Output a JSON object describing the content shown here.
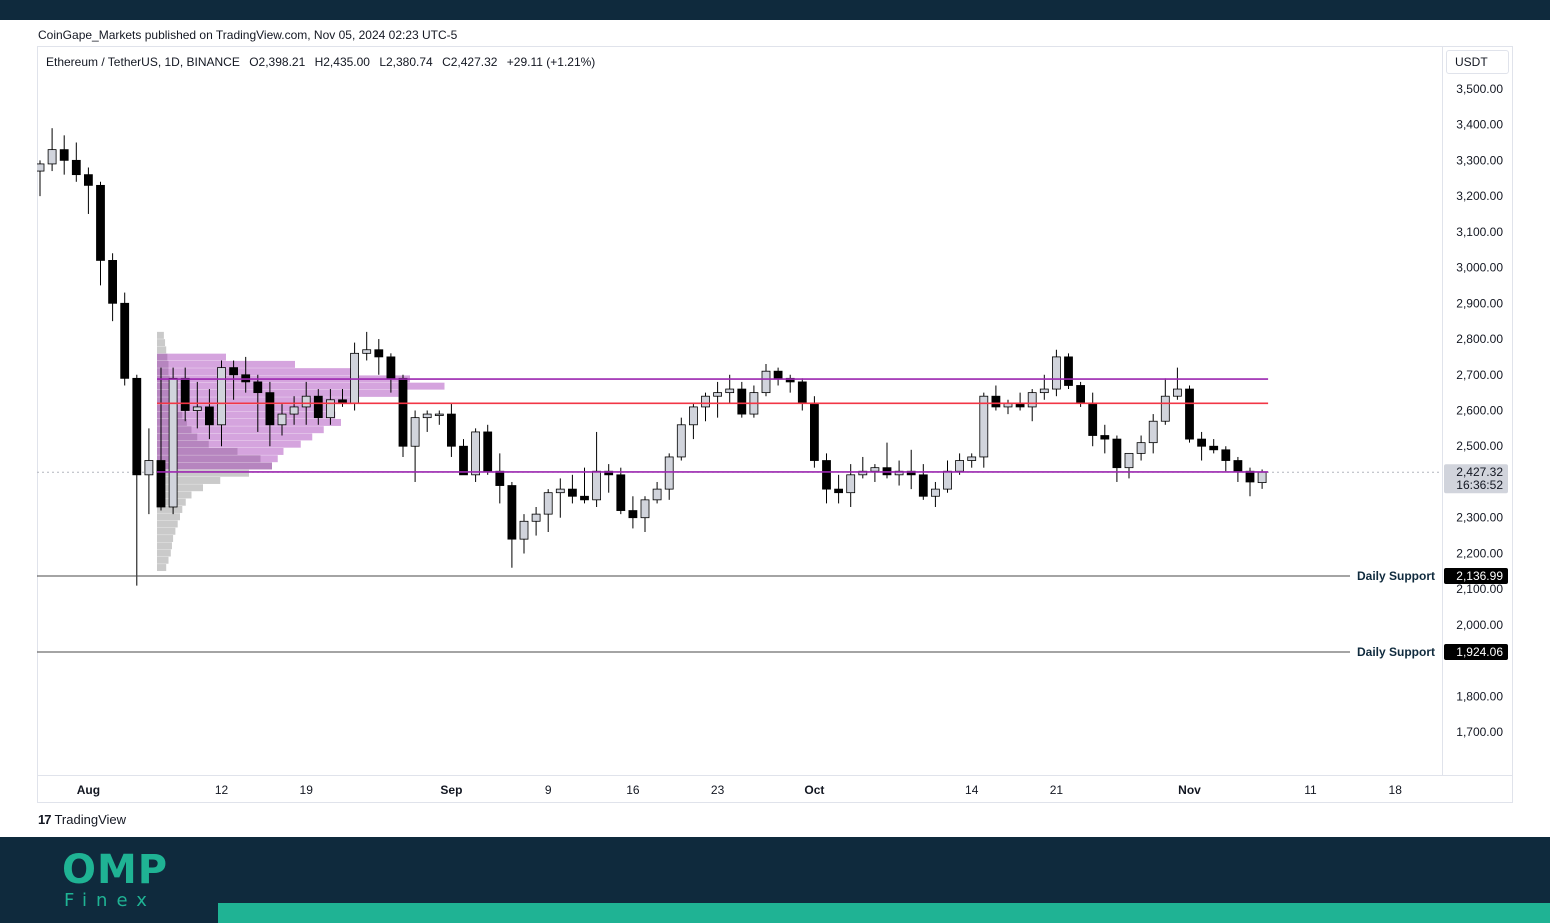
{
  "publisher": "CoinGape_Markets published on TradingView.com, Nov 05, 2024 02:23 UTC-5",
  "legend": {
    "symbol": "Ethereum / TetherUS, 1D, BINANCE",
    "open": "O2,398.21",
    "high": "H2,435.00",
    "low": "L2,380.74",
    "close": "C2,427.32",
    "change": "+29.11 (+1.21%)"
  },
  "currency": "USDT",
  "footer": {
    "mark": "17",
    "brand": "TradingView"
  },
  "branding": {
    "logo": "OMP",
    "sub": "Finex"
  },
  "colors": {
    "accent": "#1fb394",
    "navy": "#0f2a3d",
    "purple": "#9c27b0",
    "red": "#f23645"
  },
  "chart_data": {
    "type": "candlestick",
    "title": "Ethereum / TetherUS, 1D, BINANCE",
    "ylim": [
      1580,
      3620
    ],
    "y_ticks": [
      1700,
      1800,
      2000,
      2100,
      2200,
      2300,
      2500,
      2600,
      2700,
      2800,
      2900,
      3000,
      3100,
      3200,
      3300,
      3400,
      3500
    ],
    "y_tick_labels": [
      "1,700.00",
      "1,800.00",
      "2,000.00",
      "2,100.00",
      "2,200.00",
      "2,300.00",
      "2,500.00",
      "2,600.00",
      "2,700.00",
      "2,800.00",
      "2,900.00",
      "3,000.00",
      "3,100.00",
      "3,200.00",
      "3,300.00",
      "3,400.00",
      "3,500.00"
    ],
    "x_ticks": [
      {
        "day": 4,
        "label": "Aug",
        "bold": true
      },
      {
        "day": 15,
        "label": "12",
        "bold": false
      },
      {
        "day": 22,
        "label": "19",
        "bold": false
      },
      {
        "day": 34,
        "label": "Sep",
        "bold": true
      },
      {
        "day": 42,
        "label": "9",
        "bold": false
      },
      {
        "day": 49,
        "label": "16",
        "bold": false
      },
      {
        "day": 56,
        "label": "23",
        "bold": false
      },
      {
        "day": 64,
        "label": "Oct",
        "bold": true
      },
      {
        "day": 77,
        "label": "14",
        "bold": false
      },
      {
        "day": 84,
        "label": "21",
        "bold": false
      },
      {
        "day": 95,
        "label": "Nov",
        "bold": true
      },
      {
        "day": 105,
        "label": "11",
        "bold": false
      },
      {
        "day": 112,
        "label": "18",
        "bold": false
      }
    ],
    "candles": [
      [
        3270,
        3300,
        3200,
        3290
      ],
      [
        3290,
        3390,
        3270,
        3330
      ],
      [
        3330,
        3370,
        3260,
        3300
      ],
      [
        3300,
        3350,
        3240,
        3260
      ],
      [
        3260,
        3280,
        3150,
        3230
      ],
      [
        3230,
        3240,
        2950,
        3020
      ],
      [
        3020,
        3040,
        2850,
        2900
      ],
      [
        2900,
        2930,
        2670,
        2690
      ],
      [
        2690,
        2700,
        2110,
        2420
      ],
      [
        2420,
        2550,
        2310,
        2460
      ],
      [
        2460,
        2720,
        2320,
        2330
      ],
      [
        2330,
        2720,
        2310,
        2690
      ],
      [
        2690,
        2720,
        2570,
        2600
      ],
      [
        2600,
        2680,
        2550,
        2610
      ],
      [
        2610,
        2660,
        2520,
        2560
      ],
      [
        2560,
        2740,
        2500,
        2720
      ],
      [
        2720,
        2740,
        2630,
        2700
      ],
      [
        2700,
        2750,
        2650,
        2680
      ],
      [
        2680,
        2700,
        2540,
        2650
      ],
      [
        2650,
        2680,
        2500,
        2560
      ],
      [
        2560,
        2620,
        2530,
        2590
      ],
      [
        2590,
        2640,
        2560,
        2610
      ],
      [
        2610,
        2680,
        2560,
        2640
      ],
      [
        2640,
        2660,
        2560,
        2580
      ],
      [
        2580,
        2660,
        2560,
        2630
      ],
      [
        2630,
        2660,
        2610,
        2620
      ],
      [
        2620,
        2790,
        2600,
        2760
      ],
      [
        2760,
        2820,
        2740,
        2770
      ],
      [
        2770,
        2800,
        2700,
        2750
      ],
      [
        2750,
        2760,
        2650,
        2690
      ],
      [
        2690,
        2700,
        2470,
        2500
      ],
      [
        2500,
        2600,
        2400,
        2580
      ],
      [
        2580,
        2600,
        2540,
        2590
      ],
      [
        2590,
        2600,
        2560,
        2590
      ],
      [
        2590,
        2620,
        2470,
        2500
      ],
      [
        2500,
        2520,
        2420,
        2420
      ],
      [
        2420,
        2550,
        2400,
        2540
      ],
      [
        2540,
        2560,
        2420,
        2430
      ],
      [
        2430,
        2480,
        2340,
        2390
      ],
      [
        2390,
        2400,
        2160,
        2240
      ],
      [
        2240,
        2310,
        2200,
        2290
      ],
      [
        2290,
        2330,
        2250,
        2310
      ],
      [
        2310,
        2380,
        2260,
        2370
      ],
      [
        2370,
        2410,
        2300,
        2380
      ],
      [
        2380,
        2420,
        2340,
        2360
      ],
      [
        2360,
        2440,
        2340,
        2350
      ],
      [
        2350,
        2540,
        2330,
        2430
      ],
      [
        2430,
        2450,
        2370,
        2420
      ],
      [
        2420,
        2440,
        2310,
        2320
      ],
      [
        2320,
        2360,
        2270,
        2300
      ],
      [
        2300,
        2360,
        2260,
        2350
      ],
      [
        2350,
        2400,
        2340,
        2380
      ],
      [
        2380,
        2480,
        2350,
        2470
      ],
      [
        2470,
        2580,
        2460,
        2560
      ],
      [
        2560,
        2620,
        2520,
        2610
      ],
      [
        2610,
        2650,
        2570,
        2640
      ],
      [
        2640,
        2680,
        2580,
        2650
      ],
      [
        2650,
        2700,
        2620,
        2660
      ],
      [
        2660,
        2680,
        2580,
        2590
      ],
      [
        2590,
        2670,
        2580,
        2650
      ],
      [
        2650,
        2730,
        2640,
        2710
      ],
      [
        2710,
        2720,
        2670,
        2690
      ],
      [
        2690,
        2700,
        2650,
        2680
      ],
      [
        2680,
        2690,
        2600,
        2620
      ],
      [
        2620,
        2640,
        2440,
        2460
      ],
      [
        2460,
        2480,
        2340,
        2380
      ],
      [
        2380,
        2420,
        2340,
        2370
      ],
      [
        2370,
        2450,
        2330,
        2420
      ],
      [
        2420,
        2470,
        2410,
        2430
      ],
      [
        2430,
        2450,
        2400,
        2440
      ],
      [
        2440,
        2510,
        2410,
        2420
      ],
      [
        2420,
        2460,
        2390,
        2430
      ],
      [
        2430,
        2490,
        2380,
        2420
      ],
      [
        2420,
        2450,
        2350,
        2360
      ],
      [
        2360,
        2400,
        2330,
        2380
      ],
      [
        2380,
        2460,
        2370,
        2430
      ],
      [
        2430,
        2480,
        2420,
        2460
      ],
      [
        2460,
        2480,
        2440,
        2470
      ],
      [
        2470,
        2650,
        2440,
        2640
      ],
      [
        2640,
        2670,
        2600,
        2610
      ],
      [
        2610,
        2630,
        2590,
        2620
      ],
      [
        2620,
        2650,
        2600,
        2610
      ],
      [
        2610,
        2660,
        2570,
        2650
      ],
      [
        2650,
        2700,
        2630,
        2660
      ],
      [
        2660,
        2770,
        2640,
        2750
      ],
      [
        2750,
        2760,
        2660,
        2670
      ],
      [
        2670,
        2680,
        2610,
        2620
      ],
      [
        2620,
        2650,
        2500,
        2530
      ],
      [
        2530,
        2560,
        2480,
        2520
      ],
      [
        2520,
        2530,
        2400,
        2440
      ],
      [
        2440,
        2480,
        2410,
        2480
      ],
      [
        2480,
        2530,
        2460,
        2510
      ],
      [
        2510,
        2590,
        2480,
        2570
      ],
      [
        2570,
        2690,
        2560,
        2640
      ],
      [
        2640,
        2720,
        2630,
        2660
      ],
      [
        2660,
        2670,
        2510,
        2520
      ],
      [
        2520,
        2540,
        2460,
        2500
      ],
      [
        2500,
        2520,
        2480,
        2490
      ],
      [
        2490,
        2500,
        2430,
        2460
      ],
      [
        2460,
        2470,
        2400,
        2430
      ],
      [
        2430,
        2440,
        2360,
        2400
      ],
      [
        2398.21,
        2435,
        2380.74,
        2427.32
      ]
    ],
    "volume_profile_price_range": [
      2150,
      2820
    ],
    "volume_profile_gray": [
      0.08,
      0.1,
      0.12,
      0.13,
      0.14,
      0.16,
      0.18,
      0.2,
      0.22,
      0.25,
      0.3,
      0.4,
      0.55,
      0.8,
      1.0,
      0.9,
      0.7,
      0.45,
      0.35,
      0.3,
      0.26,
      0.22,
      0.18,
      0.15,
      0.13,
      0.12,
      0.11,
      0.1,
      0.1,
      0.09,
      0.08,
      0.07,
      0.06
    ],
    "volume_profile_purple": [
      0.0,
      0.0,
      0.0,
      0.0,
      0.0,
      0.0,
      0.0,
      0.0,
      0.0,
      0.0,
      0.0,
      0.0,
      0.0,
      0.0,
      1.0,
      1.05,
      1.1,
      1.25,
      1.35,
      1.45,
      1.6,
      1.55,
      1.5,
      1.7,
      2.1,
      2.5,
      2.2,
      1.7,
      1.2,
      0.6,
      0.0,
      0.0,
      0.0
    ],
    "horizontal_lines": [
      {
        "name": "range-high",
        "price": 2688,
        "color": "#9c27b0"
      },
      {
        "name": "poc-line",
        "price": 2620,
        "color": "#f23645"
      },
      {
        "name": "range-low",
        "price": 2428,
        "color": "#9c27b0"
      }
    ],
    "supports": [
      {
        "label": "Daily Support",
        "price": 2136.99,
        "value_label": "2,136.99"
      },
      {
        "label": "Daily Support",
        "price": 1924.06,
        "value_label": "1,924.06"
      }
    ],
    "last_price": {
      "value": 2427.32,
      "label": "2,427.32",
      "countdown": "16:36:52"
    }
  }
}
